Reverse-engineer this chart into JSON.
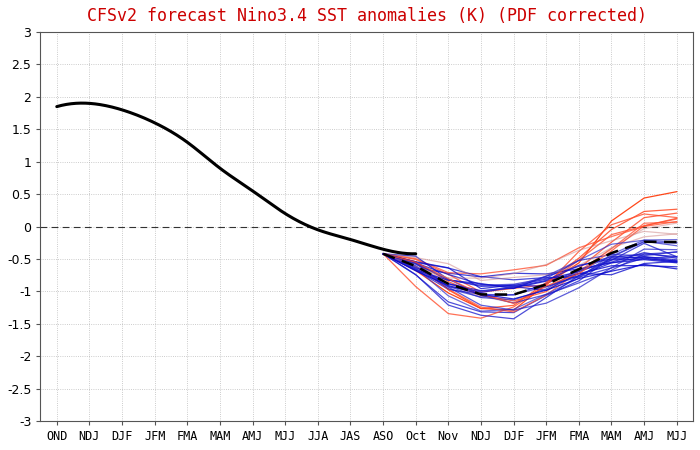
{
  "title": "CFSv2 forecast Nino3.4 SST anomalies (K) (PDF corrected)",
  "title_color": "#cc0000",
  "background_color": "#ffffff",
  "ylim": [
    -3,
    3
  ],
  "yticks": [
    -3,
    -2.5,
    -2,
    -1.5,
    -1,
    -0.5,
    0,
    0.5,
    1,
    1.5,
    2,
    2.5,
    3
  ],
  "xtick_labels": [
    "OND",
    "NDJ",
    "DJF",
    "JFM",
    "FMA",
    "MAM",
    "AMJ",
    "MJJ",
    "JJA",
    "JAS",
    "ASO",
    "Oct",
    "Nov",
    "NDJ",
    "DJF",
    "JFM",
    "FMA",
    "MAM",
    "AMJ",
    "MJJ"
  ],
  "obs_line_color": "#000000",
  "ensemble_mean_color": "#000000",
  "grid_color": "#aaaaaa",
  "grid_style": "dotted"
}
